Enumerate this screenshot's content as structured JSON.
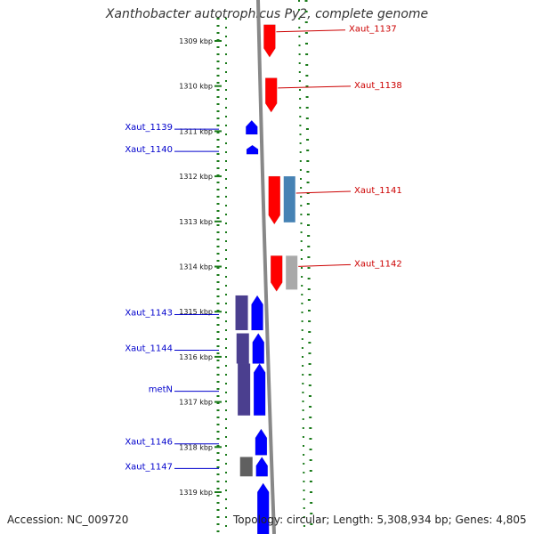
{
  "title": "Xanthobacter autotrophicus Py2, complete genome",
  "accession": "Accession: NC_009720",
  "topology": "Topology: circular; Length: 5,308,934 bp; Genes: 4,805",
  "colors": {
    "forward_label": "#cc0000",
    "reverse_label": "#0000cc",
    "ruler": "#1a7a1a",
    "backbone": "#888888",
    "red_feature": "#ff0000",
    "blue_feature": "#0000ff",
    "purple_feature": "#4b3f8f",
    "steel_feature": "#4682b4",
    "gray_feature": "#a9a9a9",
    "dark_gray_feature": "#606060"
  },
  "ticks": [
    {
      "kbp": 1309,
      "label": "1309 kbp"
    },
    {
      "kbp": 1310,
      "label": "1310 kbp"
    },
    {
      "kbp": 1311,
      "label": "1311 kbp"
    },
    {
      "kbp": 1312,
      "label": "1312 kbp"
    },
    {
      "kbp": 1313,
      "label": "1313 kbp"
    },
    {
      "kbp": 1314,
      "label": "1314 kbp"
    },
    {
      "kbp": 1315,
      "label": "1315 kbp"
    },
    {
      "kbp": 1316,
      "label": "1316 kbp"
    },
    {
      "kbp": 1317,
      "label": "1317 kbp"
    },
    {
      "kbp": 1318,
      "label": "1318 kbp"
    },
    {
      "kbp": 1319,
      "label": "1319 kbp"
    }
  ],
  "genes": [
    {
      "label": "Xaut_1137",
      "strand": "forward",
      "start": 1308.64,
      "end": 1309.36,
      "color": "red_feature"
    },
    {
      "label": "Xaut_1138",
      "strand": "forward",
      "start": 1309.82,
      "end": 1310.58,
      "color": "red_feature"
    },
    {
      "label": "Xaut_1139",
      "strand": "reverse",
      "start": 1310.76,
      "end": 1311.07,
      "color": "blue_feature"
    },
    {
      "label": "Xaut_1140",
      "strand": "reverse",
      "start": 1311.31,
      "end": 1311.51,
      "color": "blue_feature"
    },
    {
      "label": "Xaut_1141",
      "strand": "forward",
      "start": 1312.0,
      "end": 1313.06,
      "color": "red_feature",
      "companion": "steel_feature"
    },
    {
      "label": "Xaut_1142",
      "strand": "forward",
      "start": 1313.76,
      "end": 1314.55,
      "color": "red_feature",
      "companion": "gray_feature"
    },
    {
      "label": "Xaut_1143",
      "strand": "reverse",
      "start": 1314.64,
      "end": 1315.41,
      "color": "blue_feature",
      "companion": "purple_feature"
    },
    {
      "label": "Xaut_1144",
      "strand": "reverse",
      "start": 1315.48,
      "end": 1316.15,
      "color": "blue_feature",
      "companion": "purple_feature"
    },
    {
      "label": "metN",
      "strand": "reverse",
      "start": 1316.15,
      "end": 1317.3,
      "color": "blue_feature",
      "companion": "purple_feature"
    },
    {
      "label": "Xaut_1146",
      "strand": "reverse",
      "start": 1317.6,
      "end": 1318.18,
      "color": "blue_feature"
    },
    {
      "label": "Xaut_1147",
      "strand": "reverse",
      "start": 1318.22,
      "end": 1318.65,
      "color": "blue_feature",
      "companion": "dark_gray_feature"
    },
    {
      "label": "",
      "strand": "reverse",
      "start": 1318.8,
      "end": 1320.0,
      "color": "blue_feature"
    }
  ]
}
